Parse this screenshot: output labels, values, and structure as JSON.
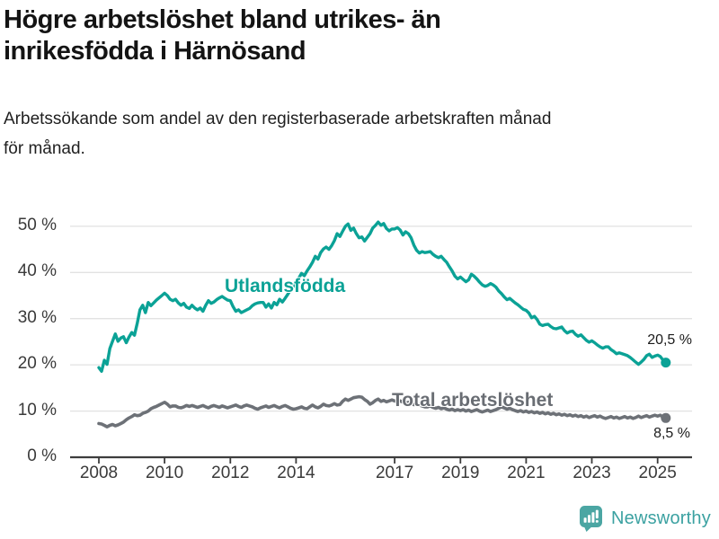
{
  "header": {
    "title": "Högre arbetslöshet bland utrikes- än\ninrikesfödda i Härnösand",
    "subtitle": "Arbetssökande som andel av den registerbaserade arbetskraften månad\nför månad."
  },
  "chart_data": {
    "type": "line",
    "title": "Högre arbetslöshet bland utrikes- än inrikesfödda i Härnösand",
    "x_start": 2008.0,
    "x_interval": "monthly",
    "x_ticks": [
      2008,
      2010,
      2012,
      2014,
      2017,
      2019,
      2021,
      2023,
      2025
    ],
    "y_ticks": [
      0,
      10,
      20,
      30,
      40,
      50
    ],
    "y_tick_suffix": " %",
    "ylim": [
      0,
      52
    ],
    "grid": "horizontal",
    "legend_position": "inline-labels",
    "colors": {
      "grid": "#e2e2e2",
      "axis": "#3d3d3d",
      "tick_text": "#3a3a3a",
      "end_label_text": "#1b1b1b"
    },
    "series": [
      {
        "name": "Utlandsfödda",
        "key": "utlandsfodda",
        "color": "#0ba296",
        "width": 3.4,
        "end_label": "20,5 %",
        "end_value": 20.5,
        "values": [
          19.4,
          18.6,
          21.0,
          20.1,
          23.5,
          25.1,
          26.7,
          25.1,
          25.8,
          26.1,
          24.8,
          26.0,
          27.0,
          26.4,
          29.0,
          31.9,
          32.9,
          31.3,
          33.5,
          32.8,
          33.4,
          34.0,
          34.5,
          35.0,
          35.5,
          35.0,
          34.2,
          33.9,
          34.2,
          33.4,
          32.9,
          33.3,
          32.5,
          32.2,
          32.9,
          32.3,
          31.9,
          32.3,
          31.6,
          32.9,
          33.9,
          33.3,
          33.6,
          34.1,
          34.5,
          34.8,
          34.4,
          34.0,
          33.9,
          32.6,
          31.6,
          31.9,
          31.3,
          31.6,
          31.9,
          32.2,
          32.8,
          33.2,
          33.4,
          33.5,
          33.5,
          32.5,
          33.2,
          32.3,
          33.5,
          33.0,
          34.2,
          33.6,
          34.4,
          35.3,
          36.2,
          37.0,
          38.0,
          38.8,
          39.8,
          39.3,
          40.3,
          41.2,
          42.2,
          43.5,
          42.9,
          44.3,
          45.1,
          45.5,
          45.0,
          45.8,
          46.9,
          48.4,
          47.8,
          48.9,
          50.0,
          50.5,
          49.1,
          49.6,
          48.4,
          47.5,
          47.7,
          46.8,
          47.6,
          48.4,
          49.6,
          50.2,
          50.9,
          50.2,
          50.6,
          49.5,
          49.0,
          49.4,
          49.4,
          49.7,
          49.2,
          48.1,
          48.8,
          48.4,
          47.5,
          45.9,
          44.8,
          44.2,
          44.5,
          44.3,
          44.4,
          44.5,
          43.9,
          43.5,
          43.2,
          43.5,
          42.8,
          42.2,
          41.2,
          40.3,
          39.2,
          38.6,
          39.0,
          38.5,
          38.0,
          38.4,
          39.6,
          39.2,
          38.6,
          37.9,
          37.3,
          37.0,
          37.2,
          37.6,
          37.3,
          36.8,
          36.0,
          35.4,
          34.7,
          34.1,
          34.4,
          33.9,
          33.4,
          33.0,
          32.5,
          32.0,
          31.8,
          31.2,
          30.2,
          30.5,
          29.8,
          28.8,
          28.5,
          28.7,
          28.8,
          28.3,
          27.9,
          27.8,
          28.0,
          28.2,
          27.4,
          26.9,
          27.2,
          27.3,
          26.6,
          26.2,
          26.5,
          25.9,
          25.3,
          24.9,
          25.2,
          24.8,
          24.3,
          23.9,
          23.6,
          23.9,
          23.9,
          23.3,
          22.9,
          22.4,
          22.6,
          22.4,
          22.2,
          22.0,
          21.6,
          21.1,
          20.6,
          20.1,
          20.6,
          21.2,
          22.0,
          22.3,
          21.6,
          21.9,
          22.1,
          21.8,
          21.0,
          20.5
        ]
      },
      {
        "name": "Total arbetslöshet",
        "key": "total-arbetsloshet",
        "color": "#6d7177",
        "width": 3.6,
        "end_label": "8,5 %",
        "end_value": 8.5,
        "values": [
          7.3,
          7.2,
          6.9,
          6.6,
          6.9,
          7.1,
          6.8,
          7.0,
          7.3,
          7.6,
          8.1,
          8.5,
          8.8,
          9.2,
          9.0,
          9.1,
          9.5,
          9.7,
          10.0,
          10.5,
          10.8,
          11.0,
          11.3,
          11.6,
          11.9,
          11.5,
          10.9,
          11.1,
          11.1,
          10.8,
          10.7,
          10.9,
          11.2,
          11.0,
          11.2,
          11.0,
          10.8,
          11.0,
          11.2,
          10.9,
          10.7,
          11.0,
          11.2,
          11.0,
          10.8,
          11.1,
          10.9,
          10.7,
          10.9,
          11.1,
          11.3,
          11.0,
          10.8,
          11.1,
          11.3,
          11.1,
          10.9,
          10.6,
          10.4,
          10.7,
          10.9,
          11.1,
          10.8,
          11.0,
          11.2,
          10.9,
          10.7,
          11.0,
          11.2,
          10.9,
          10.6,
          10.4,
          10.5,
          10.7,
          10.9,
          10.6,
          10.5,
          10.9,
          11.3,
          10.9,
          10.7,
          11.0,
          11.5,
          11.2,
          11.1,
          11.3,
          11.6,
          11.3,
          11.4,
          12.1,
          12.6,
          12.3,
          12.6,
          12.9,
          13.0,
          13.1,
          13.0,
          12.5,
          12.1,
          11.5,
          11.8,
          12.3,
          12.6,
          12.1,
          12.3,
          12.0,
          12.2,
          12.4,
          12.2,
          12.0,
          12.2,
          11.9,
          11.7,
          11.9,
          11.6,
          11.4,
          11.6,
          11.3,
          11.1,
          10.9,
          10.9,
          11.1,
          10.8,
          10.6,
          10.8,
          10.5,
          10.7,
          10.4,
          10.2,
          10.4,
          10.1,
          10.3,
          10.1,
          10.3,
          10.0,
          10.2,
          9.9,
          10.1,
          10.3,
          10.0,
          9.8,
          10.0,
          10.2,
          9.9,
          10.1,
          10.3,
          10.6,
          10.9,
          10.7,
          10.4,
          10.6,
          10.3,
          10.1,
          9.9,
          10.1,
          9.8,
          10.0,
          9.7,
          9.9,
          9.6,
          9.8,
          9.5,
          9.7,
          9.4,
          9.6,
          9.3,
          9.5,
          9.2,
          9.4,
          9.1,
          9.3,
          9.0,
          9.2,
          8.9,
          9.1,
          8.8,
          9.0,
          8.7,
          8.9,
          8.6,
          8.8,
          9.0,
          8.7,
          8.9,
          8.6,
          8.4,
          8.6,
          8.8,
          8.5,
          8.7,
          8.4,
          8.6,
          8.8,
          8.5,
          8.7,
          8.4,
          8.6,
          8.9,
          8.6,
          8.8,
          9.0,
          8.7,
          8.9,
          9.1,
          8.9,
          9.1,
          8.7,
          8.5
        ]
      }
    ]
  },
  "footer": {
    "brand": "Newsworthy",
    "brand_color": "#3ba1a1",
    "icon_color": "#4ba6a3"
  }
}
